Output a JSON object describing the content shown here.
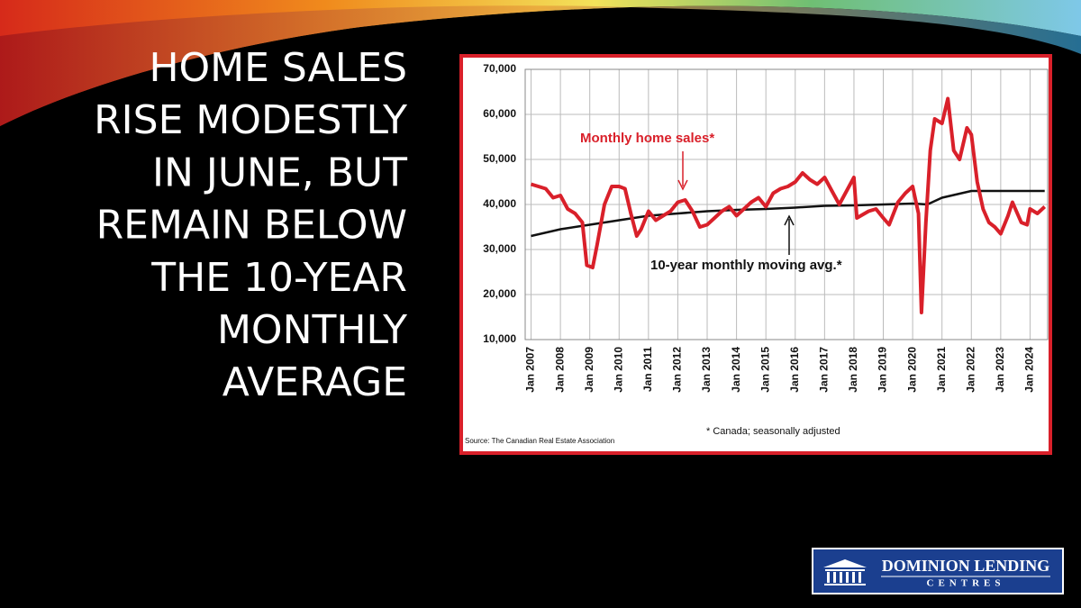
{
  "slide_title": [
    "HOME SALES",
    "RISE MODESTLY",
    "IN JUNE, BUT",
    "REMAIN BELOW",
    "THE 10-YEAR",
    "MONTHLY",
    "AVERAGE"
  ],
  "chart_data": {
    "type": "line",
    "series": [
      {
        "name": "Monthly home sales*",
        "color": "#d9202a",
        "x": [
          2007.0,
          2007.25,
          2007.5,
          2007.75,
          2008.0,
          2008.25,
          2008.5,
          2008.75,
          2008.9,
          2009.1,
          2009.25,
          2009.5,
          2009.75,
          2010.0,
          2010.2,
          2010.4,
          2010.6,
          2010.75,
          2011.0,
          2011.25,
          2011.5,
          2011.75,
          2012.0,
          2012.25,
          2012.5,
          2012.75,
          2013.0,
          2013.25,
          2013.5,
          2013.75,
          2014.0,
          2014.25,
          2014.5,
          2014.75,
          2015.0,
          2015.25,
          2015.5,
          2015.75,
          2016.0,
          2016.25,
          2016.5,
          2016.75,
          2017.0,
          2017.25,
          2017.5,
          2017.75,
          2018.0,
          2018.1,
          2018.5,
          2018.75,
          2019.0,
          2019.2,
          2019.5,
          2019.75,
          2020.0,
          2020.2,
          2020.3,
          2020.45,
          2020.6,
          2020.75,
          2021.0,
          2021.2,
          2021.4,
          2021.6,
          2021.85,
          2022.0,
          2022.2,
          2022.4,
          2022.6,
          2022.8,
          2023.0,
          2023.25,
          2023.4,
          2023.7,
          2023.9,
          2024.0,
          2024.25,
          2024.5
        ],
        "values": [
          44500,
          44000,
          43500,
          41500,
          42000,
          39000,
          38000,
          36000,
          26500,
          26000,
          31000,
          40000,
          44000,
          44000,
          43500,
          38000,
          33000,
          34500,
          38500,
          36500,
          37500,
          38500,
          40500,
          41000,
          38500,
          35000,
          35500,
          37000,
          38500,
          39500,
          37500,
          39000,
          40500,
          41500,
          39500,
          42500,
          43500,
          44000,
          45000,
          47000,
          45500,
          44500,
          46000,
          43000,
          40000,
          43000,
          46000,
          37000,
          38500,
          39000,
          37000,
          35500,
          40500,
          42500,
          44000,
          38000,
          16000,
          36000,
          52000,
          59000,
          58000,
          63500,
          52000,
          50000,
          57000,
          55500,
          45000,
          39000,
          36000,
          35000,
          33500,
          37500,
          40500,
          36000,
          35500,
          39000,
          38000,
          39500
        ]
      },
      {
        "name": "10-year monthly moving avg.*",
        "color": "#111111",
        "x": [
          2007.0,
          2008.0,
          2009.0,
          2010.0,
          2011.0,
          2012.0,
          2013.0,
          2014.0,
          2015.0,
          2016.0,
          2017.0,
          2018.0,
          2019.0,
          2020.0,
          2020.5,
          2021.0,
          2022.0,
          2023.0,
          2024.5
        ],
        "values": [
          33000,
          34500,
          35500,
          36500,
          37500,
          38000,
          38500,
          38800,
          39000,
          39300,
          39700,
          39800,
          40000,
          40200,
          40000,
          41500,
          43000,
          43000,
          43000
        ]
      }
    ],
    "xlim": [
      2006.8,
      2024.6
    ],
    "xticks": [
      {
        "value": 2007,
        "label": "Jan 2007"
      },
      {
        "value": 2008,
        "label": "Jan 2008"
      },
      {
        "value": 2009,
        "label": "Jan 2009"
      },
      {
        "value": 2010,
        "label": "Jan 2010"
      },
      {
        "value": 2011,
        "label": "Jan 2011"
      },
      {
        "value": 2012,
        "label": "Jan 2012"
      },
      {
        "value": 2013,
        "label": "Jan 2013"
      },
      {
        "value": 2014,
        "label": "Jan 2014"
      },
      {
        "value": 2015,
        "label": "Jan 2015"
      },
      {
        "value": 2016,
        "label": "Jan 2016"
      },
      {
        "value": 2017,
        "label": "Jan 2017"
      },
      {
        "value": 2018,
        "label": "Jan 2018"
      },
      {
        "value": 2019,
        "label": "Jan 2019"
      },
      {
        "value": 2020,
        "label": "Jan 2020"
      },
      {
        "value": 2021,
        "label": "Jan 2021"
      },
      {
        "value": 2022,
        "label": "Jan 2022"
      },
      {
        "value": 2023,
        "label": "Jan 2023"
      },
      {
        "value": 2024,
        "label": "Jan 2024"
      }
    ],
    "ylim": [
      10000,
      70000
    ],
    "yticks": [
      {
        "value": 10000,
        "label": "10,000"
      },
      {
        "value": 20000,
        "label": "20,000"
      },
      {
        "value": 30000,
        "label": "30,000"
      },
      {
        "value": 40000,
        "label": "40,000"
      },
      {
        "value": 50000,
        "label": "50,000"
      },
      {
        "value": 60000,
        "label": "60,000"
      },
      {
        "value": 70000,
        "label": "70,000"
      }
    ],
    "grid": true,
    "note": "* Canada; seasonally adjusted",
    "source": "Source: The Canadian Real Estate Association"
  },
  "logo": {
    "line1": "DOMINION LENDING",
    "line2": "CENTRES"
  }
}
